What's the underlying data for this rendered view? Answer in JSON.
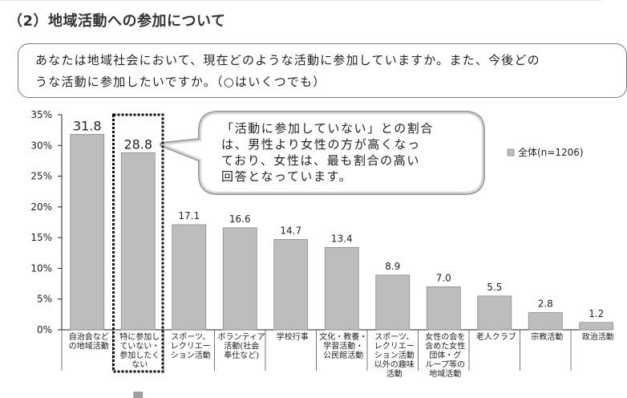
{
  "header": {
    "section_title": "（2）地域活動への参加について"
  },
  "question": {
    "text": "あなたは地域社会において、現在どのような活動に参加していますか。また、今後どの\nうな活動に参加したいですか。（○はいくつでも）"
  },
  "callout": {
    "text": "「活動に参加していない」との割合\nは、男性より女性の方が高くなっ\nており、女性は、最も割合の高い\n回答となっています。"
  },
  "chart_data": {
    "type": "bar",
    "title": "",
    "xlabel": "",
    "ylabel": "",
    "ylim": [
      0,
      35
    ],
    "y_ticks": [
      "0%",
      "5%",
      "10%",
      "15%",
      "20%",
      "25%",
      "30%",
      "35%"
    ],
    "y_tick_values": [
      0,
      5,
      10,
      15,
      20,
      25,
      30,
      35
    ],
    "grid": false,
    "legend_position": "top-right",
    "bar_color": "#bdbdbd",
    "bar_edge_color": "#8a8a8a",
    "highlight_color": "#111111",
    "highlighted_category_index": 1,
    "categories": [
      [
        "自治会など",
        "の地域活動"
      ],
      [
        "特に参加し",
        "ていない・",
        "参加したく",
        "ない"
      ],
      [
        "スポーツ、",
        "レクリエー",
        "ション活動"
      ],
      [
        "ボランティア",
        "活動(社会",
        "奉仕など)"
      ],
      [
        "学校行事"
      ],
      [
        "文化・教養・",
        "学習活動・",
        "公民館活動"
      ],
      [
        "スポーツ、",
        "レクリエー",
        "ション活動",
        "以外の趣味",
        "活動"
      ],
      [
        "女性の会を",
        "含めた女性",
        "団体・グ",
        "ループ等の",
        "地域活動"
      ],
      [
        "老人クラブ"
      ],
      [
        "宗教活動"
      ],
      [
        "政治活動"
      ]
    ],
    "series": [
      {
        "name": "全体(n=1206)",
        "values": [
          31.8,
          28.8,
          17.1,
          16.6,
          14.7,
          13.4,
          8.9,
          7.0,
          5.5,
          2.8,
          1.2
        ],
        "labels": [
          "31.8",
          "28.8",
          "17.1",
          "16.6",
          "14.7",
          "13.4",
          "8.9",
          "7.0",
          "5.5",
          "2.8",
          "1.2"
        ]
      }
    ]
  }
}
